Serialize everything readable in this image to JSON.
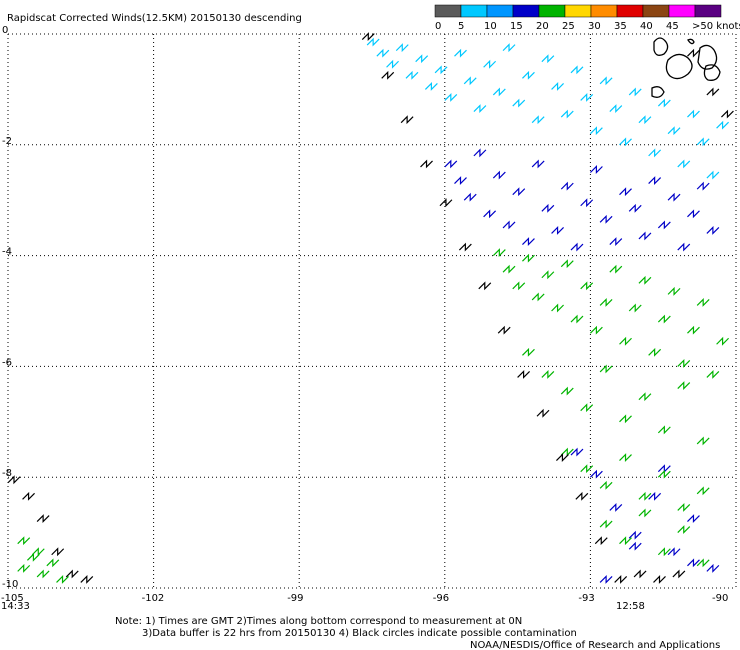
{
  "chart_data": {
    "type": "scatter",
    "title": "Rapidscat Corrected Winds(12.5KM) 20150130 descending",
    "xlabel": "",
    "ylabel": "",
    "xlim": [
      -105,
      -90
    ],
    "ylim": [
      -10,
      0
    ],
    "x_ticks": [
      -105,
      -102,
      -99,
      -96,
      -93,
      -90
    ],
    "x_tick_labels": [
      "-105",
      "-102",
      "-99",
      "-96",
      "-93",
      "-90"
    ],
    "y_ticks": [
      0,
      -2,
      -4,
      -6,
      -8,
      -10
    ],
    "y_tick_labels": [
      "0",
      "-2",
      "-4",
      "-6",
      "-8",
      "-10"
    ],
    "grid": true,
    "legend": {
      "placement": "top-right",
      "bins": [
        {
          "label": "0",
          "color": "#5a5a5a"
        },
        {
          "label": "5",
          "color": "#00c8ff"
        },
        {
          "label": "10",
          "color": "#0096ff"
        },
        {
          "label": "15",
          "color": "#0000c8"
        },
        {
          "label": "20",
          "color": "#00b400"
        },
        {
          "label": "25",
          "color": "#ffd700"
        },
        {
          "label": "30",
          "color": "#ff8c00"
        },
        {
          "label": "35",
          "color": "#e00000"
        },
        {
          "label": "40",
          "color": "#8b4513"
        },
        {
          "label": "45",
          "color": "#ff00ff"
        },
        {
          "label": ">50 knots",
          "color": "#5a0082"
        }
      ]
    },
    "time_labels": [
      {
        "value": "14:33",
        "color": "#800080"
      },
      {
        "value": "12:58",
        "color": "#800080"
      }
    ],
    "series": [
      {
        "color": "#00c8ff",
        "x": [
          -97.6,
          -97.4,
          -97.2,
          -97.0,
          -96.8,
          -96.6,
          -96.4,
          -96.2,
          -96.0,
          -95.8,
          -95.6,
          -95.4,
          -95.2,
          -95.0,
          -94.8,
          -94.6,
          -94.4,
          -94.2,
          -94.0,
          -93.8,
          -93.6,
          -93.4,
          -93.2,
          -93.0,
          -92.8,
          -92.6,
          -92.4,
          -92.2,
          -92.0,
          -91.8,
          -91.6,
          -91.4,
          -91.2,
          -91.0,
          -90.8,
          -90.6,
          -90.4
        ],
        "y": [
          -0.2,
          -0.4,
          -0.6,
          -0.3,
          -0.8,
          -0.5,
          -1.0,
          -0.7,
          -1.2,
          -0.4,
          -0.9,
          -1.4,
          -0.6,
          -1.1,
          -0.3,
          -1.3,
          -0.8,
          -1.6,
          -0.5,
          -1.0,
          -1.5,
          -0.7,
          -1.2,
          -1.8,
          -0.9,
          -1.4,
          -2.0,
          -1.1,
          -1.6,
          -2.2,
          -1.3,
          -1.8,
          -2.4,
          -1.5,
          -2.0,
          -2.6,
          -1.7
        ]
      },
      {
        "color": "#0000c8",
        "x": [
          -96.0,
          -95.8,
          -95.6,
          -95.4,
          -95.2,
          -95.0,
          -94.8,
          -94.6,
          -94.4,
          -94.2,
          -94.0,
          -93.8,
          -93.6,
          -93.4,
          -93.2,
          -93.0,
          -92.8,
          -92.6,
          -92.4,
          -92.2,
          -92.0,
          -91.8,
          -91.6,
          -91.4,
          -91.2,
          -91.0,
          -90.8,
          -90.6,
          -93.0,
          -92.6,
          -92.2,
          -91.8,
          -91.4,
          -91.0,
          -90.6,
          -93.4,
          -92.8,
          -92.2,
          -91.6,
          -91.0
        ],
        "y": [
          -2.4,
          -2.7,
          -3.0,
          -2.2,
          -3.3,
          -2.6,
          -3.5,
          -2.9,
          -3.8,
          -2.4,
          -3.2,
          -3.6,
          -2.8,
          -3.9,
          -3.1,
          -2.5,
          -3.4,
          -3.8,
          -2.9,
          -3.2,
          -3.7,
          -2.7,
          -3.5,
          -3.0,
          -3.9,
          -3.3,
          -2.8,
          -3.6,
          -8.0,
          -8.6,
          -9.1,
          -8.4,
          -9.4,
          -8.8,
          -9.7,
          -7.6,
          -9.9,
          -9.3,
          -7.9,
          -9.6
        ]
      },
      {
        "color": "#00b400",
        "x": [
          -95.0,
          -94.8,
          -94.6,
          -94.4,
          -94.2,
          -94.0,
          -93.8,
          -93.6,
          -93.4,
          -93.2,
          -93.0,
          -92.8,
          -92.6,
          -92.4,
          -92.2,
          -92.0,
          -91.8,
          -91.6,
          -91.4,
          -91.2,
          -91.0,
          -90.8,
          -90.6,
          -90.4,
          -94.4,
          -94.0,
          -93.6,
          -93.2,
          -92.8,
          -92.4,
          -92.0,
          -91.6,
          -91.2,
          -90.8,
          -93.6,
          -93.2,
          -92.8,
          -92.4,
          -92.0,
          -91.6,
          -91.2,
          -90.8,
          -92.8,
          -92.4,
          -92.0,
          -91.6,
          -91.2,
          -90.8,
          -104.8,
          -104.6,
          -104.4,
          -104.2,
          -104.0,
          -104.8,
          -104.5
        ],
        "y": [
          -4.0,
          -4.3,
          -4.6,
          -4.1,
          -4.8,
          -4.4,
          -5.0,
          -4.2,
          -5.2,
          -4.6,
          -5.4,
          -4.9,
          -4.3,
          -5.6,
          -5.0,
          -4.5,
          -5.8,
          -5.2,
          -4.7,
          -6.0,
          -5.4,
          -4.9,
          -6.2,
          -5.6,
          -5.8,
          -6.2,
          -6.5,
          -6.8,
          -6.1,
          -7.0,
          -6.6,
          -7.2,
          -6.4,
          -7.4,
          -7.6,
          -7.9,
          -8.2,
          -7.7,
          -8.4,
          -8.0,
          -8.6,
          -8.3,
          -8.9,
          -9.2,
          -8.7,
          -9.4,
          -9.0,
          -9.6,
          -9.2,
          -9.5,
          -9.8,
          -9.6,
          -9.9,
          -9.7,
          -9.4
        ]
      },
      {
        "color": "#000000",
        "x": [
          -97.7,
          -97.3,
          -96.9,
          -96.5,
          -96.1,
          -95.7,
          -95.3,
          -94.9,
          -94.5,
          -94.1,
          -93.7,
          -93.3,
          -92.9,
          -92.5,
          -92.1,
          -91.7,
          -91.3,
          -105.0,
          -104.7,
          -104.4,
          -104.1,
          -103.8,
          -103.5,
          -91.0,
          -90.6,
          -90.3
        ],
        "y": [
          -0.1,
          -0.8,
          -1.6,
          -2.4,
          -3.1,
          -3.9,
          -4.6,
          -5.4,
          -6.2,
          -6.9,
          -7.7,
          -8.4,
          -9.2,
          -9.9,
          -9.8,
          -9.9,
          -9.8,
          -8.1,
          -8.4,
          -8.8,
          -9.4,
          -9.8,
          -9.9,
          -0.4,
          -1.1,
          -1.5
        ]
      }
    ]
  },
  "labels": {
    "time_left": "14:33",
    "time_right": "12:58",
    "note_line1": "Note: 1) Times are GMT 2)Times along bottom correspond to measurement at 0N",
    "note_line2": "3)Data buffer is 22 hrs from 20150130 4) Black circles indicate possible contamination",
    "credit": "NOAA/NESDIS/Office of Research and Applications"
  }
}
